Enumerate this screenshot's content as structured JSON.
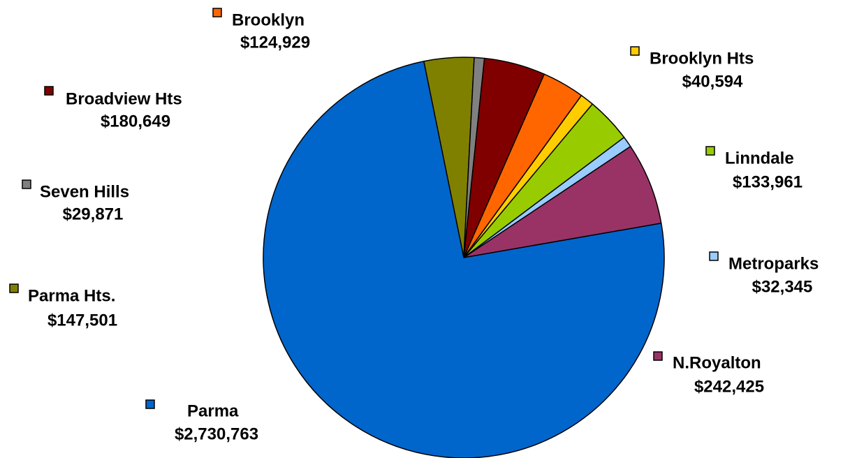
{
  "chart_data": {
    "type": "pie",
    "title": "",
    "slices": [
      {
        "name": "Parma Hts.",
        "value": 147501,
        "label": "$147,501",
        "color": "#808000"
      },
      {
        "name": "Seven Hills",
        "value": 29871,
        "label": "$29,871",
        "color": "#808080"
      },
      {
        "name": "Broadview Hts",
        "value": 180649,
        "label": "$180,649",
        "color": "#800000"
      },
      {
        "name": "Brooklyn",
        "value": 124929,
        "label": "$124,929",
        "color": "#ff6600"
      },
      {
        "name": "Brooklyn Hts",
        "value": 40594,
        "label": "$40,594",
        "color": "#ffcc00"
      },
      {
        "name": "Linndale",
        "value": 133961,
        "label": "$133,961",
        "color": "#99cc00"
      },
      {
        "name": "Metroparks",
        "value": 32345,
        "label": "$32,345",
        "color": "#99ccff"
      },
      {
        "name": "N.Royalton",
        "value": 242425,
        "label": "$242,425",
        "color": "#993366"
      },
      {
        "name": "Parma",
        "value": 2730763,
        "label": "$2,730,763",
        "color": "#0066cc"
      }
    ],
    "legend_placement": "labels-around-pie"
  }
}
